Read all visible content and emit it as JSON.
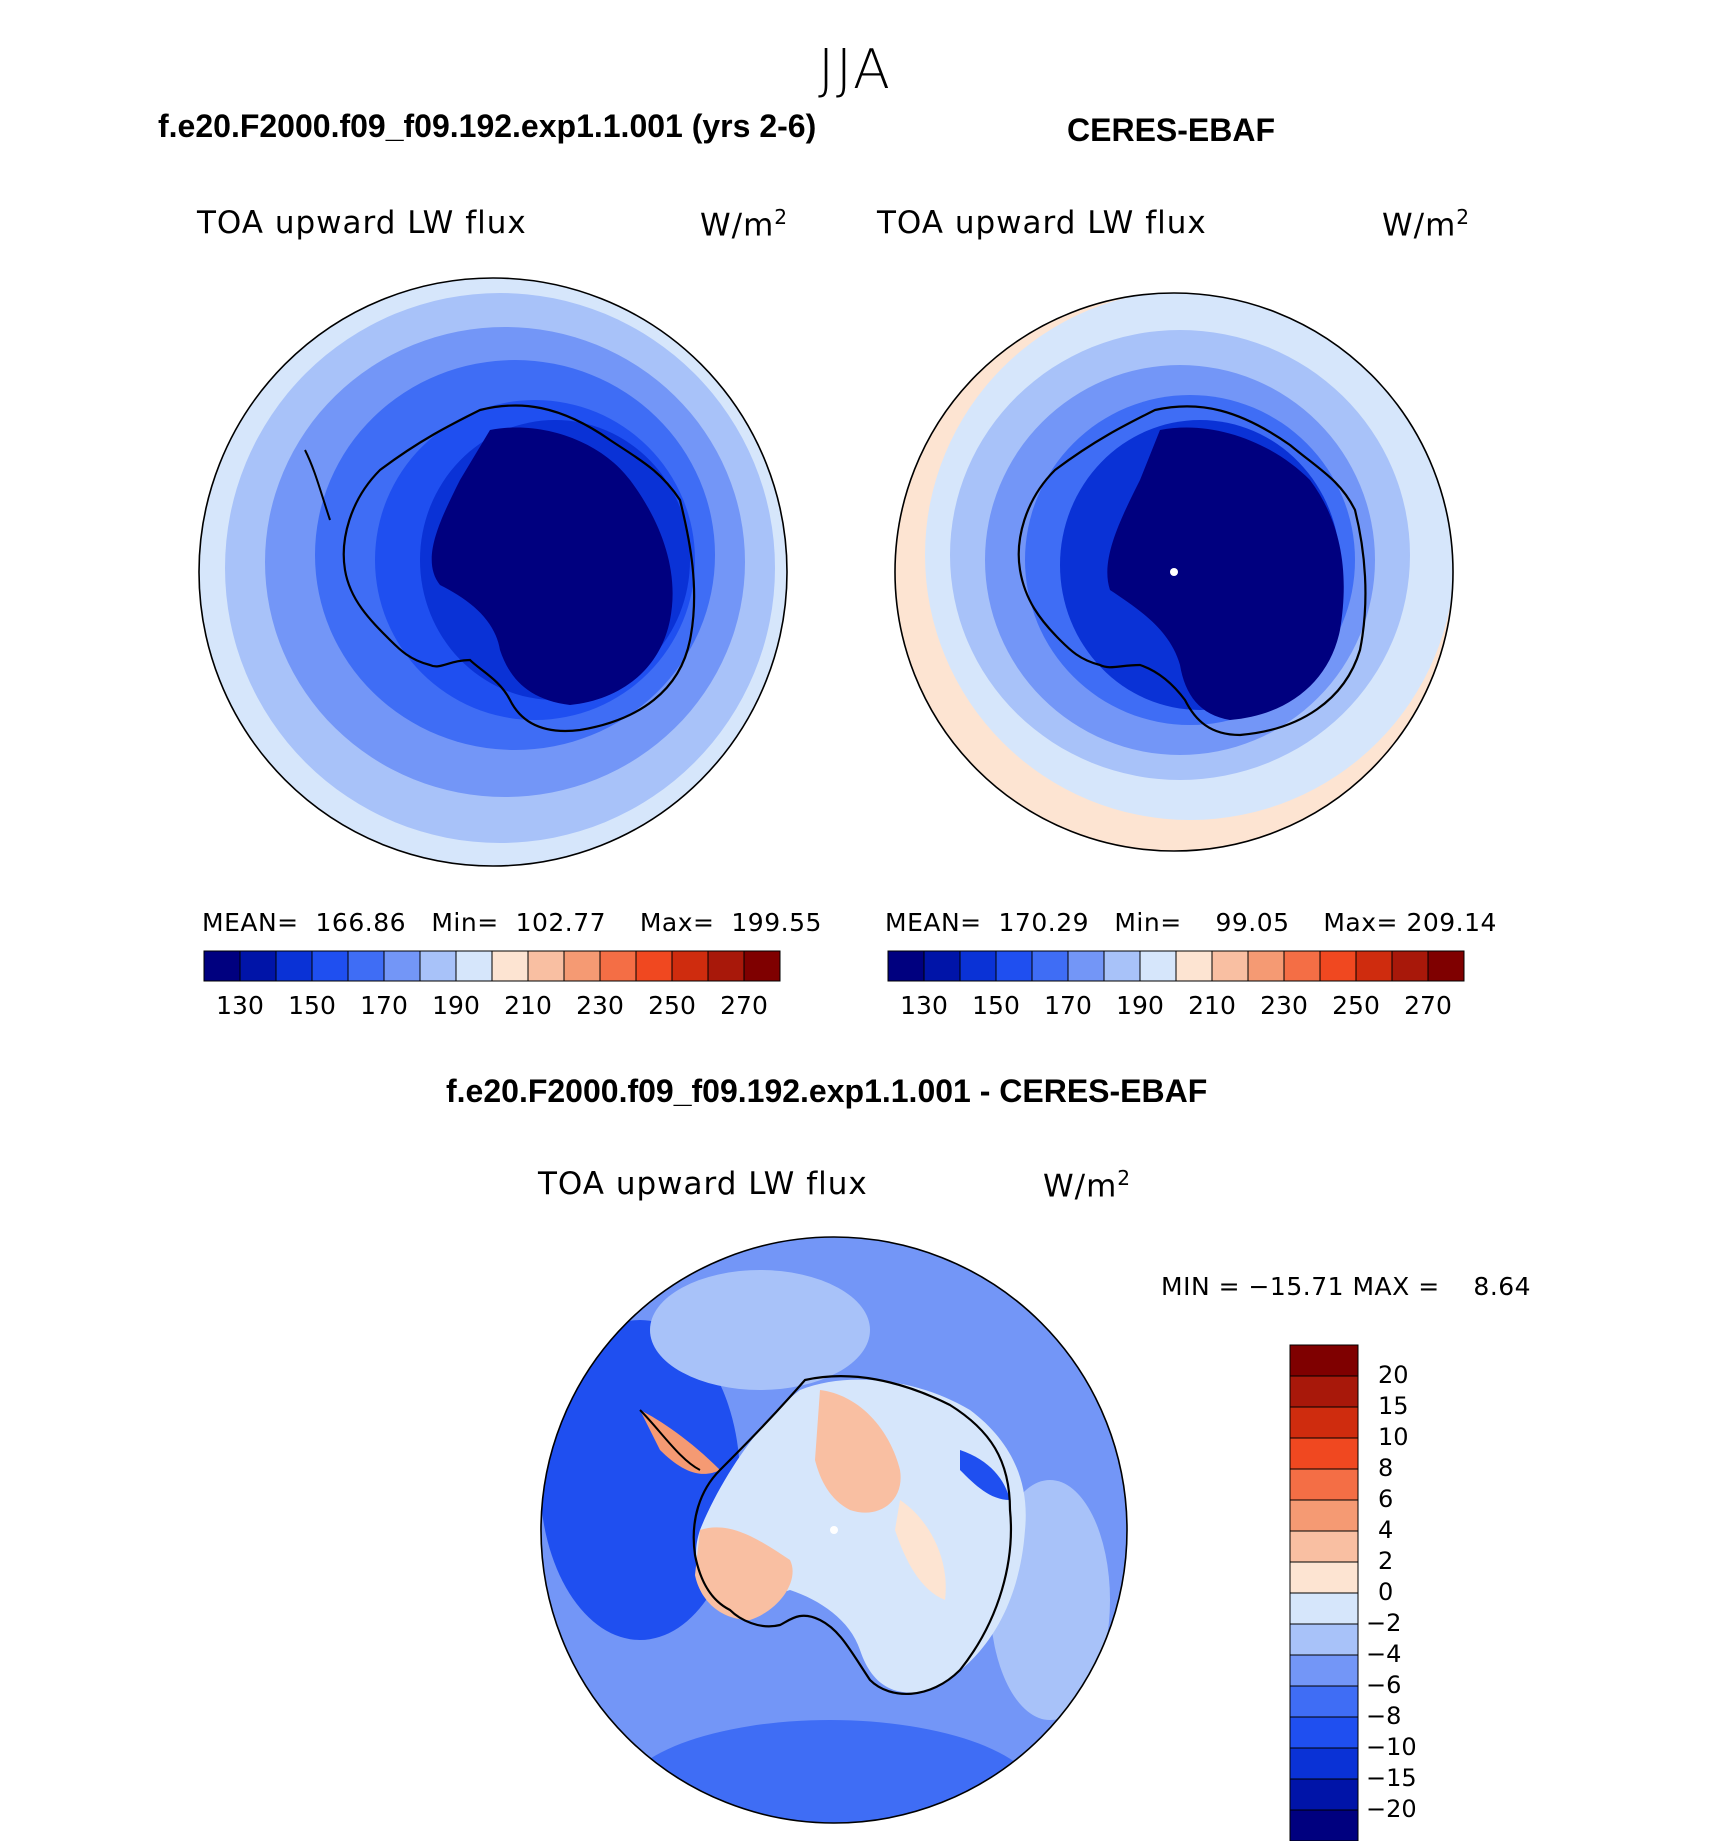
{
  "season": "JJA",
  "panels": [
    {
      "id": "model",
      "title": "f.e20.F2000.f09_f09.192.exp1.1.001 (yrs 2-6)",
      "variable": "TOA upward LW flux",
      "units_base": "W/m",
      "units_exp": "2",
      "stats": {
        "mean_label": "MEAN=",
        "mean": "166.86",
        "min_label": "Min=",
        "min": "102.77",
        "max_label": "Max=",
        "max": "199.55"
      }
    },
    {
      "id": "obs",
      "title": "CERES-EBAF",
      "variable": "TOA upward LW flux",
      "units_base": "W/m",
      "units_exp": "2",
      "stats": {
        "mean_label": "MEAN=",
        "mean": "170.29",
        "min_label": "Min=",
        "min": "99.05",
        "max_label": "Max=",
        "max": "209.14"
      }
    }
  ],
  "diff": {
    "title": "f.e20.F2000.f09_f09.192.exp1.1.001 - CERES-EBAF",
    "variable": "TOA upward LW flux",
    "units_base": "W/m",
    "units_exp": "2",
    "stats_text": "MIN = −15.71 MAX =    8.64"
  },
  "colorbar_abs": {
    "colors": [
      "#00007f",
      "#0014a8",
      "#0a32d6",
      "#1f4ff0",
      "#3f6df5",
      "#7396f7",
      "#a8c2f9",
      "#d6e6fb",
      "#fde4d2",
      "#f9bfa2",
      "#f59a73",
      "#f46e45",
      "#f04820",
      "#cf2c0e",
      "#a8180a",
      "#7f0000"
    ],
    "tick_labels": [
      "130",
      "150",
      "170",
      "190",
      "210",
      "230",
      "250",
      "270"
    ]
  },
  "colorbar_diff": {
    "colors": [
      "#7f0000",
      "#a8180a",
      "#cf2c0e",
      "#f04820",
      "#f46e45",
      "#f59a73",
      "#f9bfa2",
      "#fde4d2",
      "#d6e6fb",
      "#a8c2f9",
      "#7396f7",
      "#3f6df5",
      "#1f4ff0",
      "#0a32d6",
      "#0014a8",
      "#00007f"
    ],
    "tick_labels": [
      "20",
      "15",
      "10",
      "8",
      "6",
      "4",
      "2",
      "0",
      "−2",
      "−4",
      "−6",
      "−8",
      "−10",
      "−15",
      "−20"
    ]
  }
}
